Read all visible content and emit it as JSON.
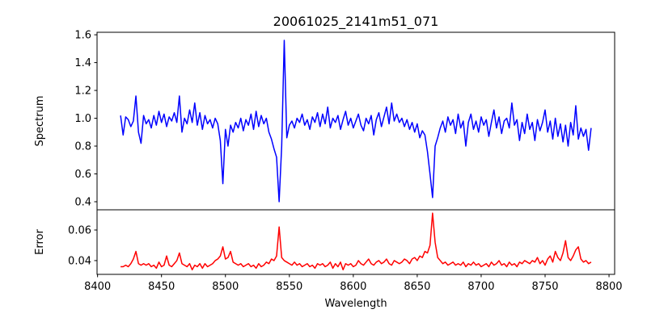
{
  "chart_data": [
    {
      "type": "line",
      "panel": "top",
      "title": "20061025_2141m51_071",
      "xlabel": "",
      "ylabel": "Spectrum",
      "xlim": [
        8399.6,
        8804.4
      ],
      "ylim": [
        0.342,
        1.618
      ],
      "yticks": [
        "0.4",
        "0.6",
        "0.8",
        "1.0",
        "1.2",
        "1.4",
        "1.6"
      ],
      "grid": false,
      "series": [
        {
          "name": "Spectrum",
          "color": "#0000ff",
          "x_start": 8418,
          "x_step": 2,
          "values": [
            1.02,
            0.88,
            1.01,
            0.99,
            0.94,
            0.98,
            1.16,
            0.9,
            0.82,
            1.02,
            0.96,
            0.99,
            0.93,
            1.02,
            0.95,
            1.05,
            0.97,
            1.03,
            0.94,
            1.01,
            0.98,
            1.04,
            0.97,
            1.16,
            0.9,
            1.0,
            0.96,
            1.06,
            0.97,
            1.11,
            0.95,
            1.04,
            0.92,
            1.02,
            0.96,
            0.99,
            0.93,
            1.0,
            0.96,
            0.84,
            0.53,
            0.92,
            0.8,
            0.95,
            0.9,
            0.97,
            0.93,
            1.0,
            0.91,
            0.99,
            0.95,
            1.03,
            0.92,
            1.05,
            0.94,
            1.02,
            0.96,
            1.0,
            0.9,
            0.85,
            0.78,
            0.72,
            0.4,
            0.8,
            1.56,
            0.86,
            0.95,
            0.98,
            0.93,
            1.0,
            0.97,
            1.03,
            0.95,
            0.99,
            0.92,
            1.01,
            0.97,
            1.04,
            0.94,
            1.03,
            0.96,
            1.08,
            0.93,
            1.0,
            0.97,
            1.02,
            0.92,
            0.99,
            1.05,
            0.95,
            1.0,
            0.93,
            0.98,
            1.03,
            0.95,
            0.91,
            1.0,
            0.96,
            1.02,
            0.88,
            0.99,
            1.04,
            0.94,
            1.01,
            1.08,
            0.96,
            1.11,
            0.98,
            1.03,
            0.97,
            1.0,
            0.94,
            0.99,
            0.92,
            0.97,
            0.9,
            0.96,
            0.86,
            0.91,
            0.88,
            0.76,
            0.6,
            0.43,
            0.8,
            0.86,
            0.93,
            0.98,
            0.9,
            1.01,
            0.95,
            0.99,
            0.89,
            1.03,
            0.93,
            0.98,
            0.8,
            0.97,
            1.03,
            0.92,
            0.98,
            0.9,
            1.01,
            0.95,
            0.99,
            0.87,
            0.97,
            1.06,
            0.93,
            1.01,
            0.89,
            0.98,
            1.0,
            0.93,
            1.11,
            0.95,
            0.99,
            0.84,
            0.97,
            0.89,
            1.03,
            0.92,
            0.97,
            0.84,
            0.99,
            0.91,
            0.97,
            1.06,
            0.9,
            0.98,
            0.85,
            1.0,
            0.87,
            0.96,
            0.83,
            0.95,
            0.8,
            0.97,
            0.88,
            1.09,
            0.85,
            0.93,
            0.87,
            0.92,
            0.77,
            0.93
          ]
        }
      ]
    },
    {
      "type": "line",
      "panel": "bottom",
      "xlabel": "Wavelength",
      "ylabel": "Error",
      "xlim": [
        8399.6,
        8804.4
      ],
      "ylim": [
        0.031,
        0.0732
      ],
      "xticks": [
        "8400",
        "8450",
        "8500",
        "8550",
        "8600",
        "8650",
        "8700",
        "8750",
        "8800"
      ],
      "yticks": [
        "0.04",
        "0.06"
      ],
      "grid": false,
      "series": [
        {
          "name": "Error",
          "color": "#ff0000",
          "x_start": 8418,
          "x_step": 2,
          "values": [
            0.036,
            0.036,
            0.037,
            0.036,
            0.038,
            0.041,
            0.046,
            0.038,
            0.037,
            0.038,
            0.037,
            0.038,
            0.036,
            0.037,
            0.035,
            0.039,
            0.036,
            0.037,
            0.043,
            0.037,
            0.036,
            0.038,
            0.04,
            0.045,
            0.038,
            0.037,
            0.036,
            0.038,
            0.034,
            0.037,
            0.036,
            0.038,
            0.035,
            0.038,
            0.036,
            0.037,
            0.038,
            0.04,
            0.041,
            0.043,
            0.049,
            0.041,
            0.042,
            0.046,
            0.039,
            0.038,
            0.037,
            0.038,
            0.036,
            0.037,
            0.038,
            0.036,
            0.037,
            0.035,
            0.038,
            0.036,
            0.037,
            0.039,
            0.038,
            0.041,
            0.04,
            0.043,
            0.062,
            0.042,
            0.04,
            0.039,
            0.038,
            0.037,
            0.039,
            0.037,
            0.038,
            0.036,
            0.037,
            0.038,
            0.036,
            0.037,
            0.035,
            0.038,
            0.037,
            0.038,
            0.036,
            0.037,
            0.039,
            0.035,
            0.038,
            0.036,
            0.039,
            0.034,
            0.038,
            0.037,
            0.038,
            0.036,
            0.037,
            0.04,
            0.038,
            0.037,
            0.039,
            0.041,
            0.038,
            0.037,
            0.039,
            0.04,
            0.038,
            0.039,
            0.041,
            0.038,
            0.037,
            0.04,
            0.039,
            0.038,
            0.039,
            0.041,
            0.04,
            0.038,
            0.041,
            0.042,
            0.04,
            0.043,
            0.042,
            0.046,
            0.045,
            0.05,
            0.071,
            0.052,
            0.042,
            0.04,
            0.038,
            0.039,
            0.037,
            0.038,
            0.039,
            0.037,
            0.038,
            0.037,
            0.039,
            0.036,
            0.038,
            0.037,
            0.039,
            0.037,
            0.038,
            0.036,
            0.037,
            0.038,
            0.036,
            0.039,
            0.037,
            0.038,
            0.04,
            0.037,
            0.038,
            0.036,
            0.039,
            0.037,
            0.038,
            0.036,
            0.039,
            0.038,
            0.04,
            0.039,
            0.038,
            0.04,
            0.039,
            0.042,
            0.038,
            0.04,
            0.037,
            0.041,
            0.043,
            0.039,
            0.046,
            0.042,
            0.04,
            0.045,
            0.053,
            0.042,
            0.04,
            0.043,
            0.047,
            0.049,
            0.041,
            0.039,
            0.04,
            0.038,
            0.039
          ]
        }
      ]
    }
  ]
}
